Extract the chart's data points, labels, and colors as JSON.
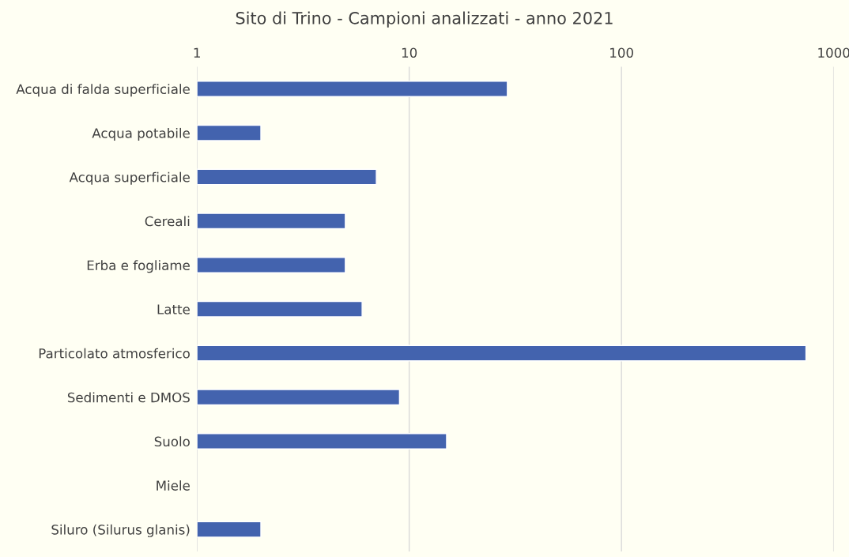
{
  "chart_data": {
    "type": "bar",
    "orientation": "horizontal",
    "title": "Sito di Trino - Campioni analizzati - anno 2021",
    "categories": [
      "Acqua di falda superficiale",
      "Acqua potabile",
      "Acqua superficiale",
      "Cereali",
      "Erba e fogliame",
      "Latte",
      "Particolato atmosferico",
      "Sedimenti e DMOS",
      "Suolo",
      "Miele",
      "Siluro (Silurus glanis)"
    ],
    "values": [
      29,
      2,
      7,
      5,
      5,
      6,
      740,
      9,
      15,
      null,
      2
    ],
    "color": "#4363ae",
    "log": "x",
    "xlim": [
      1,
      1000
    ],
    "xticks": [
      1,
      10,
      100,
      1000
    ],
    "grid": "x",
    "legend": false
  }
}
